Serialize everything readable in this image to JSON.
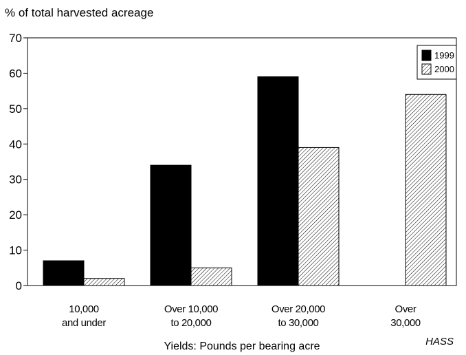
{
  "chart_data": {
    "type": "bar",
    "title": "",
    "ylabel": "% of total harvested acreage",
    "xlabel": "Yields: Pounds per bearing acre",
    "source": "HASS",
    "ylim": [
      0,
      70
    ],
    "yticks": [
      0,
      10,
      20,
      30,
      40,
      50,
      60,
      70
    ],
    "grid": false,
    "legend_position": "top-right",
    "categories": [
      [
        "10,000",
        "and under"
      ],
      [
        "Over 10,000",
        "to 20,000"
      ],
      [
        "Over 20,000",
        "to 30,000"
      ],
      [
        "Over",
        "30,000"
      ]
    ],
    "series": [
      {
        "name": "1999",
        "values": [
          7,
          34,
          59,
          0
        ],
        "fill": "solid",
        "color": "#000000"
      },
      {
        "name": "2000",
        "values": [
          2,
          5,
          39,
          54
        ],
        "fill": "hatched",
        "color": "#000000"
      }
    ]
  }
}
